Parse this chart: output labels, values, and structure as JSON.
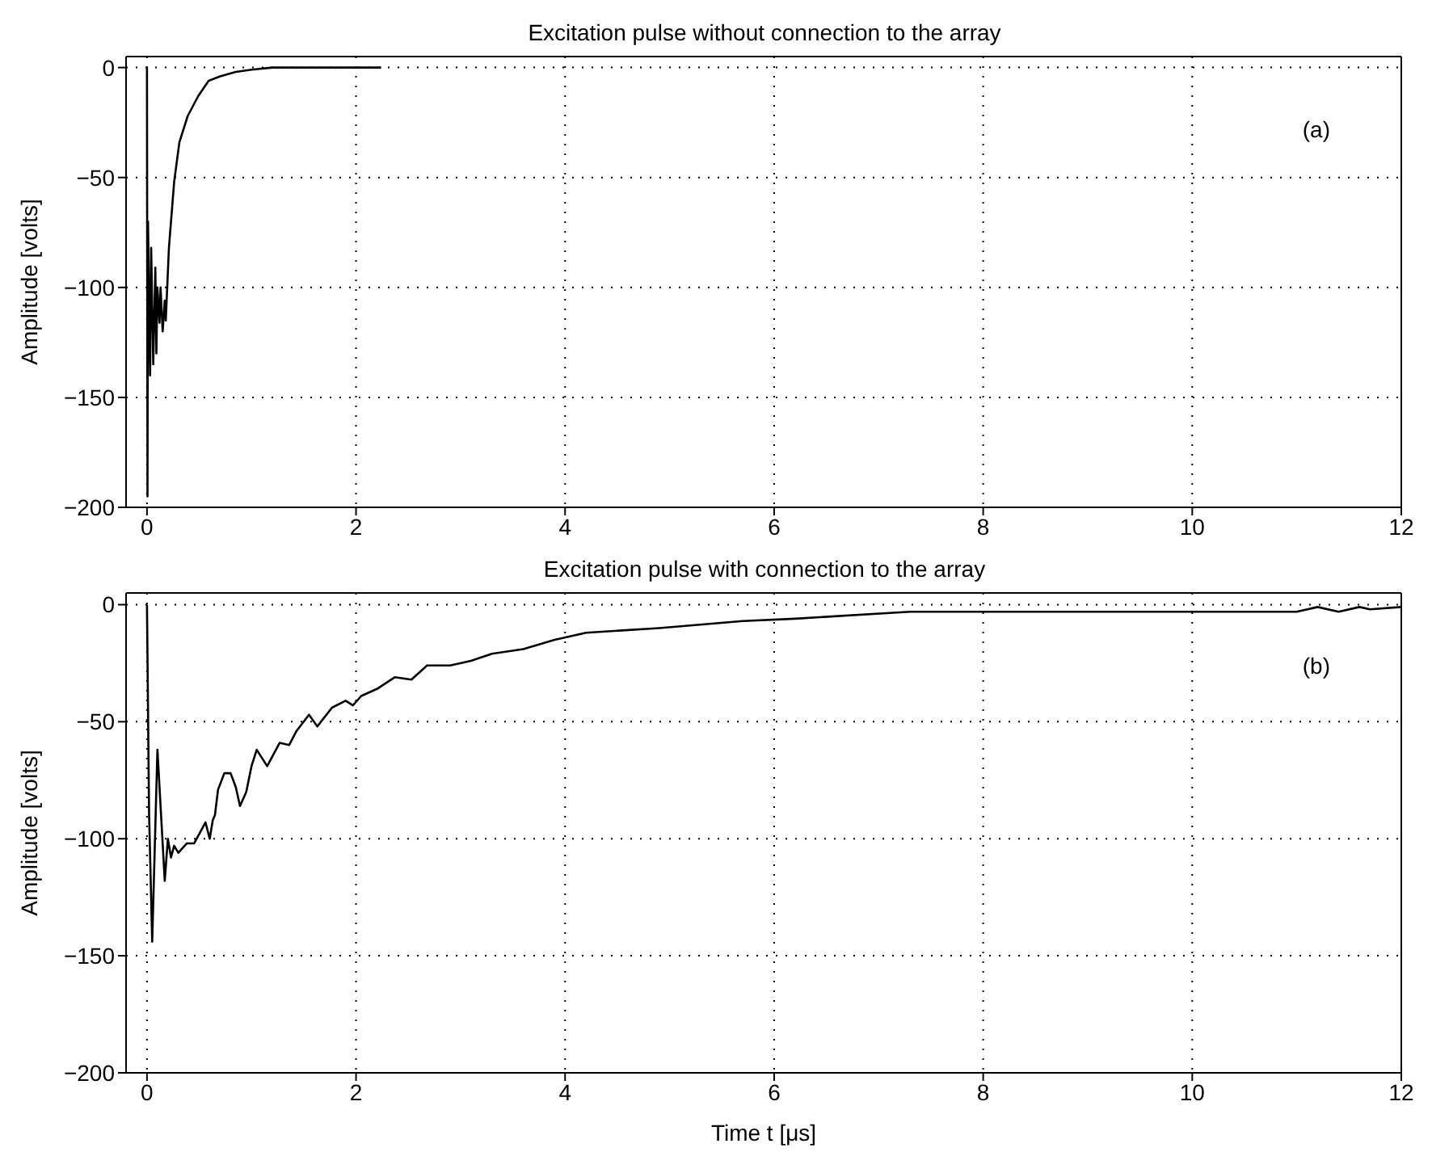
{
  "chart_data": [
    {
      "type": "line",
      "title": "Excitation pulse without connection to the array",
      "ylabel": "Amplitude  [volts]",
      "annotations": [
        "(a)"
      ],
      "xlim": [
        -0.2,
        12
      ],
      "xticks": [
        0,
        2,
        4,
        6,
        8,
        10,
        12
      ],
      "ylim": [
        -200,
        5
      ],
      "yticks": [
        -200,
        -150,
        -100,
        -50,
        0
      ],
      "grid": true,
      "line_style": "solid",
      "color": "#000000",
      "x": [
        0,
        0.005,
        0.01,
        0.03,
        0.04,
        0.06,
        0.08,
        0.09,
        0.1,
        0.12,
        0.13,
        0.15,
        0.17,
        0.18,
        0.21,
        0.26,
        0.31,
        0.39,
        0.49,
        0.59,
        0.7,
        0.85,
        1.0,
        1.2,
        2.24
      ],
      "values": [
        0,
        -195,
        -70,
        -140,
        -82,
        -135,
        -91,
        -130,
        -100,
        -116,
        -100,
        -120,
        -106,
        -115,
        -82,
        -52,
        -34,
        -22,
        -13,
        -6,
        -4,
        -2,
        -1,
        0,
        0
      ]
    },
    {
      "type": "line",
      "title": "Excitation pulse with connection to the array",
      "xlabel": "Time  t [μs]",
      "ylabel": "Amplitude  [volts]",
      "annotations": [
        "(b)"
      ],
      "xlim": [
        -0.2,
        12
      ],
      "xticks": [
        0,
        2,
        4,
        6,
        8,
        10,
        12
      ],
      "ylim": [
        -200,
        5
      ],
      "yticks": [
        -200,
        -150,
        -100,
        -50,
        0
      ],
      "grid": true,
      "line_style": "solid",
      "color": "#000000",
      "x": [
        0,
        0.02,
        0.05,
        0.1,
        0.17,
        0.2,
        0.23,
        0.26,
        0.3,
        0.38,
        0.45,
        0.5,
        0.56,
        0.6,
        0.63,
        0.65,
        0.68,
        0.74,
        0.8,
        0.85,
        0.89,
        0.95,
        1.0,
        1.05,
        1.15,
        1.27,
        1.36,
        1.43,
        1.55,
        1.63,
        1.77,
        1.9,
        1.97,
        2.05,
        2.2,
        2.37,
        2.53,
        2.68,
        2.9,
        3.1,
        3.3,
        3.6,
        3.9,
        4.2,
        4.9,
        5.7,
        6.2,
        7.3,
        11.0,
        11.2,
        11.4,
        11.6,
        11.7,
        12
      ],
      "values": [
        0,
        -89,
        -144,
        -62,
        -118,
        -100,
        -108,
        -103,
        -106,
        -102,
        -102,
        -98,
        -93,
        -100,
        -92,
        -90,
        -79,
        -72,
        -72,
        -78,
        -86,
        -80,
        -69,
        -62,
        -69,
        -59,
        -60,
        -54,
        -47,
        -52,
        -44,
        -41,
        -43,
        -39,
        -36,
        -31,
        -32,
        -26,
        -26,
        -24,
        -21,
        -19,
        -15,
        -12,
        -10,
        -7,
        -6,
        -3,
        -3,
        -1,
        -3,
        -1,
        -2,
        -1
      ]
    }
  ]
}
